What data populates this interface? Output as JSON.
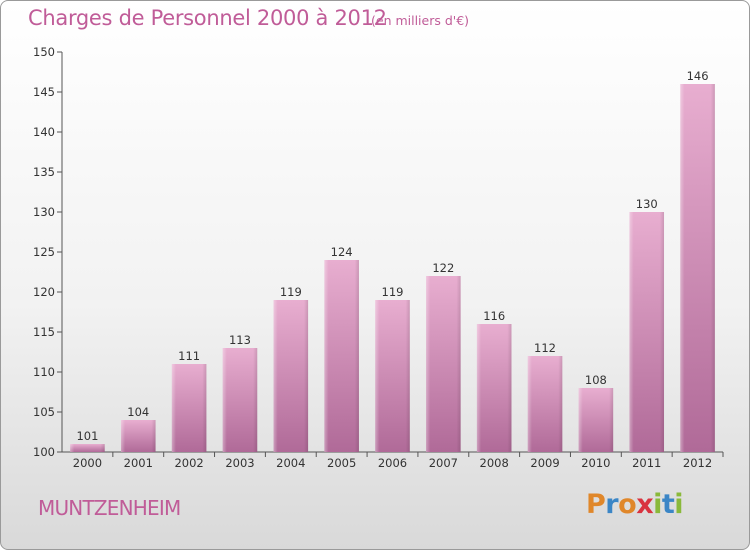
{
  "header": {
    "title": "Charges de Personnel 2000 à 2012",
    "subtitle": "(en milliers d'€)"
  },
  "footer": {
    "city": "MUNTZENHEIM",
    "logo_letters": [
      "P",
      "r",
      "o",
      "x",
      "i",
      "t",
      "i"
    ]
  },
  "colors": {
    "text_accent": "#c05c98",
    "bar_top": "#e8aed0",
    "bar_bottom": "#b06a98",
    "logo": [
      "#e0872a",
      "#3b86c6",
      "#e0872a",
      "#d9333f",
      "#8ab93a",
      "#3b86c6",
      "#8ab93a"
    ]
  },
  "chart_data": {
    "type": "bar",
    "categories": [
      "2000",
      "2001",
      "2002",
      "2003",
      "2004",
      "2005",
      "2006",
      "2007",
      "2008",
      "2009",
      "2010",
      "2011",
      "2012"
    ],
    "values": [
      101,
      104,
      111,
      113,
      119,
      124,
      119,
      122,
      116,
      112,
      108,
      130,
      146
    ],
    "ylim": [
      100,
      150
    ],
    "yticks": [
      100,
      105,
      110,
      115,
      120,
      125,
      130,
      135,
      140,
      145,
      150
    ],
    "grid": false,
    "data_labels": true
  }
}
